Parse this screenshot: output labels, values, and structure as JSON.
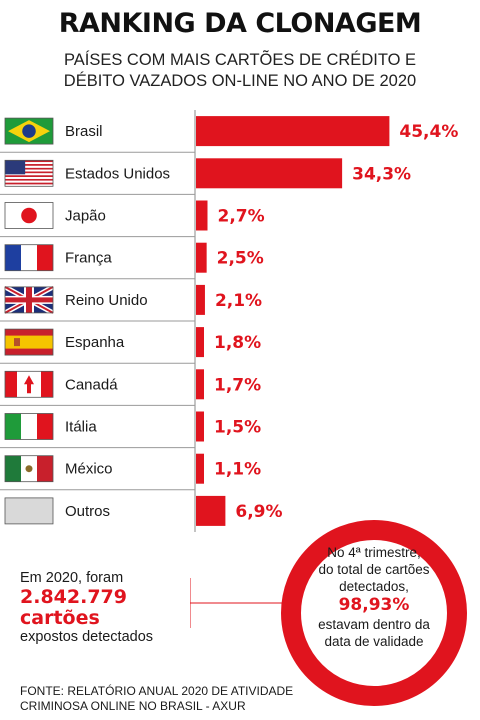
{
  "header": {
    "title": "RANKING DA CLONAGEM",
    "subtitle": "PAÍSES COM MAIS CARTÕES DE CRÉDITO E\nDÉBITO VAZADOS ON-LINE NO ANO DE 2020"
  },
  "chart_data": {
    "type": "bar",
    "orientation": "horizontal",
    "categories": [
      "Brasil",
      "Estados Unidos",
      "Japão",
      "França",
      "Reino Unido",
      "Espanha",
      "Canadá",
      "Itália",
      "México",
      "Outros"
    ],
    "values": [
      45.4,
      34.3,
      2.7,
      2.5,
      2.1,
      1.8,
      1.7,
      1.5,
      1.1,
      6.9
    ],
    "value_labels": [
      "45,4%",
      "34,3%",
      "2,7%",
      "2,5%",
      "2,1%",
      "1,8%",
      "1,7%",
      "1,5%",
      "1,1%",
      "6,9%"
    ],
    "flags": [
      "flag-brazil-icon",
      "flag-usa-icon",
      "flag-japan-icon",
      "flag-france-icon",
      "flag-uk-icon",
      "flag-spain-icon",
      "flag-canada-icon",
      "flag-italy-icon",
      "flag-mexico-icon",
      "flag-other-icon"
    ],
    "bar_color": "#e0141e",
    "grid": false
  },
  "summary": {
    "intro": "Em 2020, foram",
    "count": "2.842.779",
    "unit": "cartões",
    "outro": "expostos detectados"
  },
  "highlight": {
    "line1": "No 4ª trimestre,",
    "line2": "do total de cartões",
    "line3": "detectados,",
    "percent": "98,93%",
    "line4": "estavam dentro da",
    "line5": "data de validade"
  },
  "source": "FONTE: RELATÓRIO ANUAL 2020 DE ATIVIDADE\nCRIMINOSA ONLINE NO BRASIL - AXUR",
  "colors": {
    "accent": "#e0141e",
    "text": "#1a1a1a"
  }
}
